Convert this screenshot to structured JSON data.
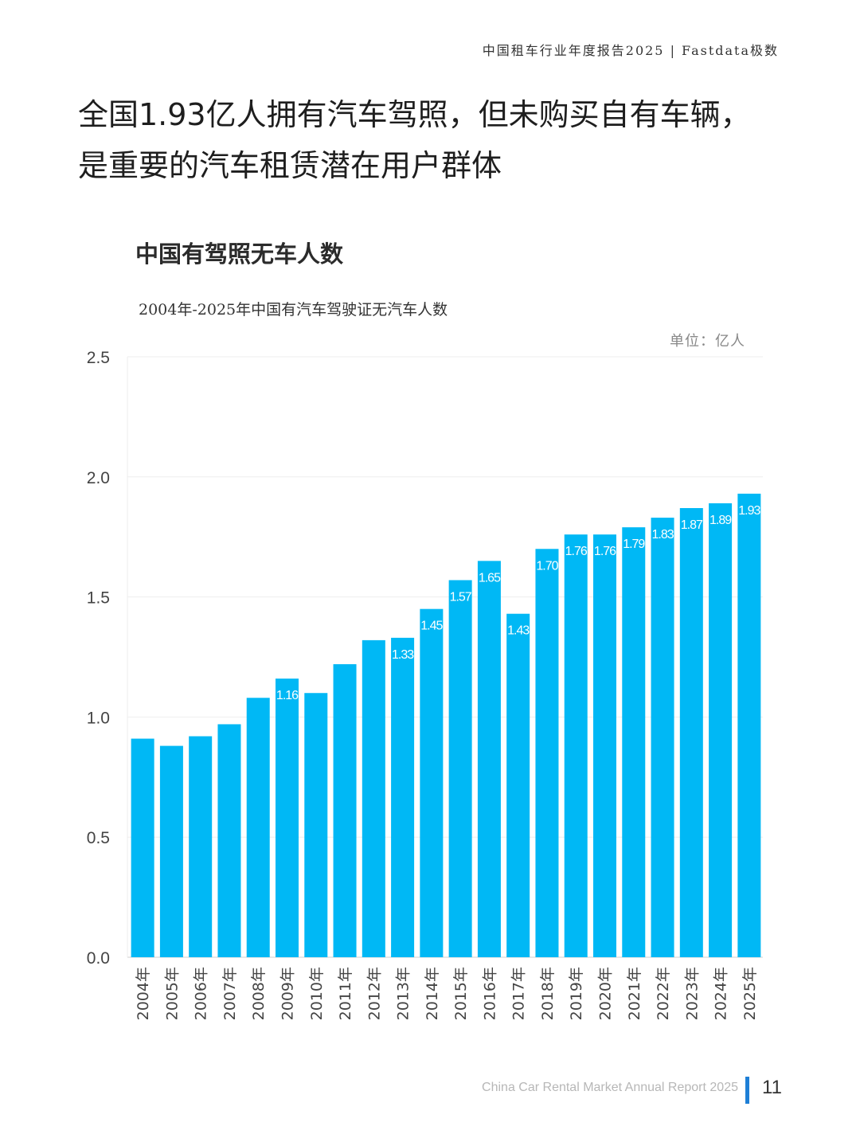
{
  "header": {
    "report_title": "中国租车行业年度报告2025 | Fastdata极数"
  },
  "headline": {
    "line1": "全国1.93亿人拥有汽车驾照，但未购买自有车辆，",
    "line2": "是重要的汽车租赁潜在用户群体"
  },
  "section": {
    "title": "中国有驾照无车人数"
  },
  "footer": {
    "report_name": "China Car Rental Market Annual Report 2025",
    "page_number": "11"
  },
  "chart_data": {
    "type": "bar",
    "title": "",
    "subtitle": "2004年-2025年中国有汽车驾驶证无汽车人数",
    "unit": "单位：亿人",
    "xlabel": "",
    "ylabel": "",
    "ylim": [
      0,
      25
    ],
    "yticks": [
      "0.0",
      "0.5",
      "1.0",
      "1.5",
      "2.0",
      "2.5"
    ],
    "ytick_values": [
      0,
      0.5,
      1.0,
      1.5,
      2.0,
      2.5
    ],
    "grid": true,
    "bar_color": "#00b8f5",
    "categories": [
      "2004年",
      "2005年",
      "2006年",
      "2007年",
      "2008年",
      "2009年",
      "2010年",
      "2011年",
      "2012年",
      "2013年",
      "2014年",
      "2015年",
      "2016年",
      "2017年",
      "2018年",
      "2019年",
      "2020年",
      "2021年",
      "2022年",
      "2023年",
      "2024年",
      "2025年"
    ],
    "values": [
      0.91,
      0.88,
      0.92,
      0.97,
      1.08,
      1.16,
      1.1,
      1.22,
      1.32,
      1.33,
      1.45,
      1.57,
      1.65,
      1.43,
      1.7,
      1.76,
      1.76,
      1.79,
      1.83,
      1.87,
      1.89,
      1.93
    ],
    "data_labels": [
      "",
      "",
      "",
      "",
      "",
      "1.16",
      "",
      "",
      "",
      "1.33",
      "1.45",
      "1.57",
      "1.65",
      "1.43",
      "1.70",
      "1.76",
      "1.76",
      "1.79",
      "1.83",
      "1.87",
      "1.89",
      "1.93"
    ]
  }
}
